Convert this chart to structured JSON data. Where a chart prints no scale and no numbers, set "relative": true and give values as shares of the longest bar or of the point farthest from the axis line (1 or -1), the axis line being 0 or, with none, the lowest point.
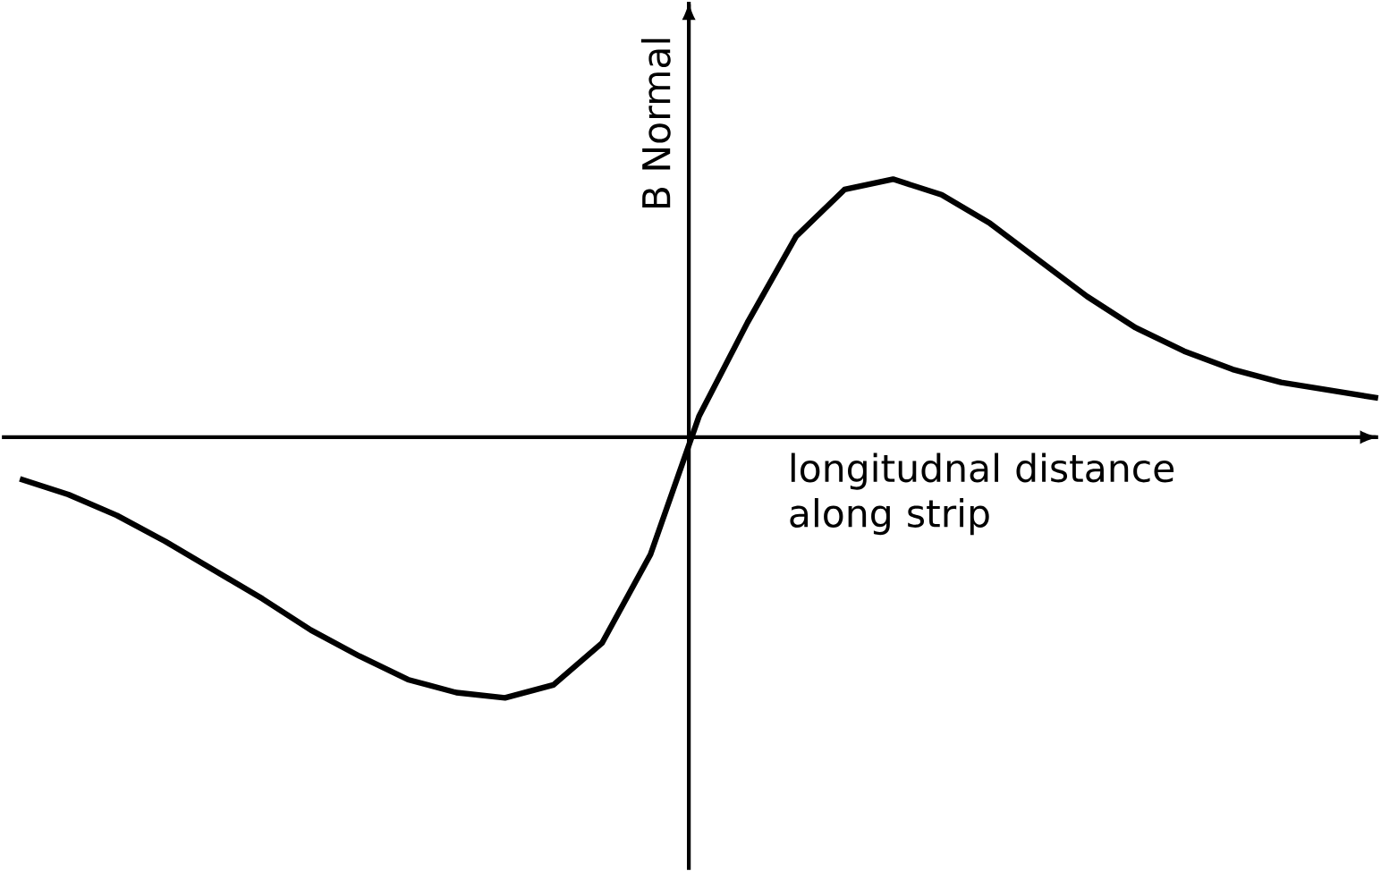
{
  "chart_data": {
    "type": "line",
    "relative": true,
    "xlabel": "longitudnal distance along strip",
    "ylabel": "B Normal",
    "categories": [
      null,
      null,
      null,
      null,
      null,
      null,
      null,
      null,
      null,
      null,
      null,
      null,
      null,
      null,
      null,
      null,
      null,
      null,
      null,
      null,
      null,
      null,
      null,
      null,
      null,
      null,
      null,
      null,
      null
    ],
    "series": [
      {
        "color": "#000000",
        "values": [
          -0.16,
          -0.22,
          -0.3,
          -0.4,
          -0.51,
          -0.62,
          -0.74,
          -0.84,
          -0.93,
          -0.98,
          -1,
          -0.95,
          -0.79,
          -0.45,
          0.08,
          0.44,
          0.77,
          0.95,
          0.99,
          0.93,
          0.82,
          0.68,
          0.54,
          0.42,
          0.33,
          0.26,
          0.21,
          0.18,
          0.15
        ]
      }
    ]
  }
}
